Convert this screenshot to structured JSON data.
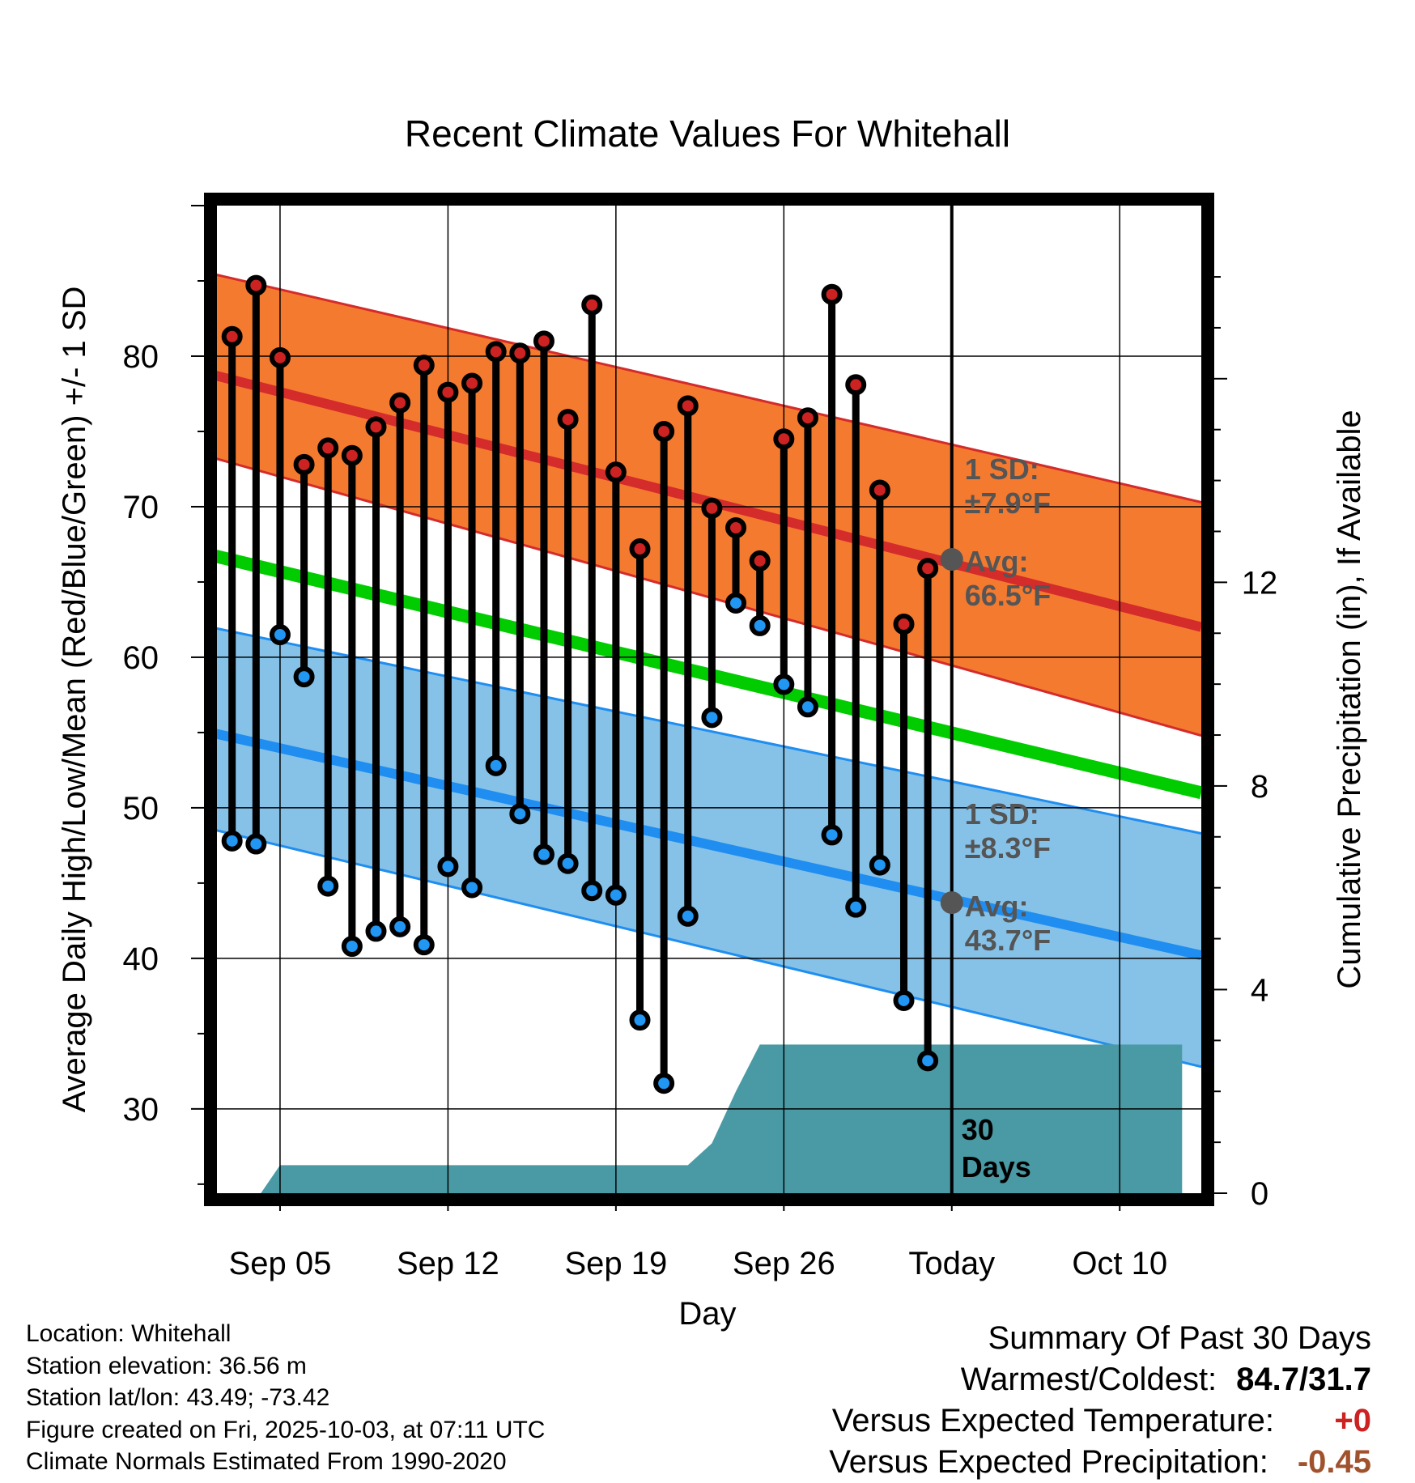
{
  "title": "Recent Climate Values For Whitehall",
  "colors": {
    "high_band": "#f47a30",
    "high_band_edge": "#d42b2b",
    "high_mean": "#d42b2b",
    "low_band": "#86c2e8",
    "low_band_edge": "#1f8ef0",
    "low_mean": "#1f8ef0",
    "mean_line": "#00cc00",
    "high_marker": "#cc2222",
    "low_marker": "#2196f3",
    "precip_fill": "#4a9aa5",
    "annotation": "#555555"
  },
  "chart_data": {
    "type": "line",
    "title": "Recent Climate Values For Whitehall",
    "xlabel": "Day",
    "ylabel": "Average Daily High/Low/Mean (Red/Blue/Green) +/- 1 SD",
    "y2label": "Cumulative Precipitation (in), If Available",
    "x_range": [
      -30.9,
      10.4
    ],
    "ylim": [
      24.4,
      90
    ],
    "y2lim": [
      0,
      19.4
    ],
    "x_ticks": [
      {
        "x": -28,
        "label": "Sep 05"
      },
      {
        "x": -21,
        "label": "Sep 12"
      },
      {
        "x": -14,
        "label": "Sep 19"
      },
      {
        "x": -7,
        "label": "Sep 26"
      },
      {
        "x": 0,
        "label": "Today"
      },
      {
        "x": 7,
        "label": "Oct 10"
      }
    ],
    "y_ticks": [
      30,
      40,
      50,
      60,
      70,
      80
    ],
    "y2_ticks": [
      0,
      4,
      8,
      12
    ],
    "today_label": [
      "30",
      "Days"
    ],
    "normals": {
      "x": [
        -30.9,
        10.4
      ],
      "high_mean": [
        78.8,
        62
      ],
      "high_sd_upper": [
        85.5,
        70.3
      ],
      "high_sd_lower": [
        73.3,
        54.8
      ],
      "low_mean": [
        55,
        40.2
      ],
      "low_sd_upper": [
        62,
        48.3
      ],
      "low_sd_lower": [
        48.6,
        32.8
      ],
      "mean": [
        66.8,
        51
      ]
    },
    "days": [
      -30,
      -29,
      -28,
      -27,
      -26,
      -25,
      -24,
      -23,
      -22,
      -21,
      -20,
      -19,
      -18,
      -17,
      -16,
      -15,
      -14,
      -13,
      -12,
      -11,
      -10,
      -9,
      -8,
      -7,
      -6,
      -5,
      -4,
      -3,
      -2,
      -1
    ],
    "series": [
      {
        "name": "Daily High",
        "values": [
          81.3,
          84.7,
          79.9,
          72.8,
          73.9,
          73.4,
          75.3,
          76.9,
          79.4,
          77.6,
          78.2,
          80.3,
          80.2,
          81.0,
          75.8,
          83.4,
          72.3,
          67.2,
          75.0,
          76.7,
          69.9,
          68.6,
          66.4,
          74.5,
          75.9,
          84.1,
          78.1,
          71.1,
          62.2,
          65.9
        ]
      },
      {
        "name": "Daily Low",
        "values": [
          47.8,
          47.6,
          61.5,
          58.7,
          44.8,
          40.8,
          41.8,
          42.1,
          40.9,
          46.1,
          44.7,
          52.8,
          49.6,
          46.9,
          46.3,
          44.5,
          44.2,
          35.9,
          31.7,
          42.8,
          56.0,
          63.6,
          62.1,
          58.2,
          56.7,
          48.2,
          43.4,
          46.2,
          37.2,
          33.2
        ]
      },
      {
        "name": "Cumulative Precipitation",
        "x": [
          -28.8,
          -28.0,
          -11.0,
          -10.0,
          -9.0,
          -8.0,
          -7.0,
          0,
          9.6
        ],
        "values": [
          0,
          0.55,
          0.55,
          0.98,
          2.0,
          2.92,
          2.92,
          2.92,
          2.92
        ]
      }
    ],
    "today_high_avg": 66.5,
    "today_low_avg": 43.7,
    "annotations": {
      "high_sd_label": "1 SD:",
      "high_sd_value": "±7.9°F",
      "high_avg_label": "Avg:",
      "high_avg_value": "66.5°F",
      "low_sd_label": "1 SD:",
      "low_sd_value": "±8.3°F",
      "low_avg_label": "Avg:",
      "low_avg_value": "43.7°F"
    }
  },
  "footer": {
    "location": "Location: Whitehall",
    "elevation": "Station elevation: 36.56 m",
    "latlon": "Station lat/lon: 43.49; -73.42",
    "created": "Figure created on Fri, 2025-10-03, at 07:11 UTC",
    "normals": "Climate Normals Estimated From 1990-2020"
  },
  "summary": {
    "heading": "Summary Of Past 30 Days",
    "warm_cold_label": "Warmest/Coldest:",
    "warm_cold_value": "84.7/31.7",
    "temp_label": "Versus Expected Temperature:",
    "temp_value": "+0",
    "precip_label": "Versus Expected Precipitation:",
    "precip_value": "-0.45"
  }
}
